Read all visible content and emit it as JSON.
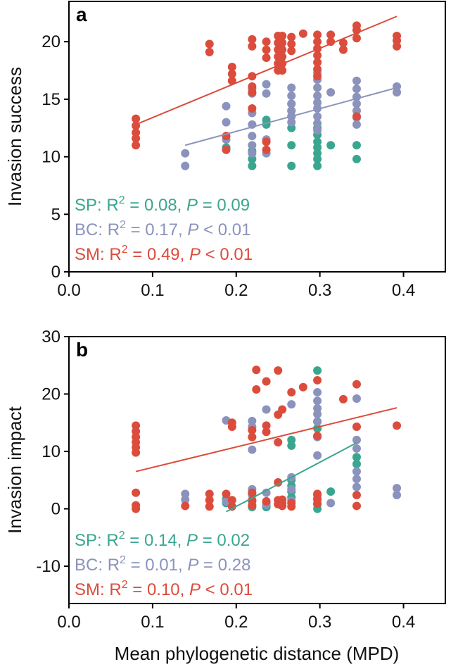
{
  "colors": {
    "SP": "#3aa68f",
    "BC": "#8b93bd",
    "SM": "#db4c3c"
  },
  "xlabel": "Mean phylogenetic distance (MPD)",
  "chart_data": [
    {
      "type": "scatter",
      "panel_label": "a",
      "ylabel": "Invasion success",
      "xlim": [
        0.0,
        0.45
      ],
      "ylim": [
        0,
        23.5
      ],
      "xticks": [
        "0.0",
        "0.1",
        "0.2",
        "0.3",
        "0.4"
      ],
      "xtick_values": [
        0.0,
        0.1,
        0.2,
        0.3,
        0.4
      ],
      "yticks": [
        "0",
        "5",
        "10",
        "15",
        "20"
      ],
      "ytick_values": [
        0,
        5,
        10,
        15,
        20
      ],
      "series": [
        {
          "name": "SP",
          "color_key": "SP",
          "points": [
            [
              0.188,
              10.8
            ],
            [
              0.219,
              9.2
            ],
            [
              0.219,
              9.8
            ],
            [
              0.219,
              10.5
            ],
            [
              0.236,
              12.8
            ],
            [
              0.236,
              13.2
            ],
            [
              0.266,
              9.2
            ],
            [
              0.266,
              11.0
            ],
            [
              0.266,
              12.5
            ],
            [
              0.266,
              13.5
            ],
            [
              0.266,
              14.0
            ],
            [
              0.266,
              14.6
            ],
            [
              0.297,
              9.2
            ],
            [
              0.297,
              9.8
            ],
            [
              0.297,
              10.3
            ],
            [
              0.297,
              10.8
            ],
            [
              0.297,
              11.3
            ],
            [
              0.297,
              11.9
            ],
            [
              0.297,
              12.5
            ],
            [
              0.313,
              11.0
            ],
            [
              0.344,
              9.8
            ],
            [
              0.344,
              11.0
            ]
          ],
          "fit": [],
          "stats_label": "SP: ",
          "r2_text": "R",
          "r2_sup": "2",
          "r2_value": " = 0.08, ",
          "p_italic": "P",
          "p_text": " = 0.09"
        },
        {
          "name": "BC",
          "color_key": "BC",
          "points": [
            [
              0.139,
              9.2
            ],
            [
              0.139,
              10.3
            ],
            [
              0.188,
              13.0
            ],
            [
              0.188,
              14.4
            ],
            [
              0.188,
              11.5
            ],
            [
              0.219,
              10.3
            ],
            [
              0.219,
              11.0
            ],
            [
              0.219,
              11.8
            ],
            [
              0.219,
              12.8
            ],
            [
              0.219,
              13.8
            ],
            [
              0.219,
              15.5
            ],
            [
              0.219,
              15.9
            ],
            [
              0.236,
              10.3
            ],
            [
              0.236,
              11.5
            ],
            [
              0.236,
              15.5
            ],
            [
              0.236,
              16.3
            ],
            [
              0.266,
              13.0
            ],
            [
              0.266,
              13.5
            ],
            [
              0.266,
              14.0
            ],
            [
              0.266,
              14.6
            ],
            [
              0.266,
              15.3
            ],
            [
              0.266,
              16.0
            ],
            [
              0.297,
              12.3
            ],
            [
              0.297,
              12.9
            ],
            [
              0.297,
              13.5
            ],
            [
              0.297,
              14.2
            ],
            [
              0.297,
              14.7
            ],
            [
              0.297,
              15.3
            ],
            [
              0.297,
              16.0
            ],
            [
              0.297,
              16.7
            ],
            [
              0.297,
              17.3
            ],
            [
              0.313,
              15.6
            ],
            [
              0.344,
              12.8
            ],
            [
              0.344,
              13.4
            ],
            [
              0.344,
              14.0
            ],
            [
              0.344,
              14.6
            ],
            [
              0.344,
              15.2
            ],
            [
              0.344,
              15.9
            ],
            [
              0.344,
              16.6
            ],
            [
              0.392,
              15.6
            ],
            [
              0.392,
              16.1
            ]
          ],
          "fit": [
            [
              0.139,
              11.0
            ],
            [
              0.392,
              16.0
            ]
          ],
          "stats_label": "BC: ",
          "r2_text": "R",
          "r2_sup": "2",
          "r2_value": " = 0.17, ",
          "p_italic": "P",
          "p_text": " < 0.01"
        },
        {
          "name": "SM",
          "color_key": "SM",
          "points": [
            [
              0.08,
              11.0
            ],
            [
              0.08,
              11.6
            ],
            [
              0.08,
              12.1
            ],
            [
              0.08,
              12.7
            ],
            [
              0.08,
              13.3
            ],
            [
              0.168,
              19.1
            ],
            [
              0.168,
              19.8
            ],
            [
              0.188,
              10.6
            ],
            [
              0.188,
              11.8
            ],
            [
              0.195,
              16.6
            ],
            [
              0.195,
              17.2
            ],
            [
              0.195,
              17.8
            ],
            [
              0.219,
              14.2
            ],
            [
              0.219,
              15.6
            ],
            [
              0.219,
              16.1
            ],
            [
              0.219,
              17.0
            ],
            [
              0.219,
              19.6
            ],
            [
              0.219,
              20.2
            ],
            [
              0.236,
              10.6
            ],
            [
              0.236,
              11.3
            ],
            [
              0.236,
              18.6
            ],
            [
              0.236,
              19.3
            ],
            [
              0.236,
              20.0
            ],
            [
              0.25,
              17.5
            ],
            [
              0.25,
              18.1
            ],
            [
              0.25,
              18.7
            ],
            [
              0.25,
              19.3
            ],
            [
              0.25,
              19.9
            ],
            [
              0.25,
              20.5
            ],
            [
              0.255,
              17.5
            ],
            [
              0.255,
              18.1
            ],
            [
              0.255,
              18.7
            ],
            [
              0.255,
              19.3
            ],
            [
              0.255,
              19.9
            ],
            [
              0.255,
              20.5
            ],
            [
              0.266,
              19.2
            ],
            [
              0.266,
              19.8
            ],
            [
              0.266,
              20.4
            ],
            [
              0.28,
              20.7
            ],
            [
              0.297,
              17.0
            ],
            [
              0.297,
              17.6
            ],
            [
              0.297,
              18.2
            ],
            [
              0.297,
              18.8
            ],
            [
              0.297,
              19.4
            ],
            [
              0.297,
              20.0
            ],
            [
              0.297,
              20.6
            ],
            [
              0.313,
              20.0
            ],
            [
              0.313,
              20.6
            ],
            [
              0.328,
              19.3
            ],
            [
              0.328,
              19.9
            ],
            [
              0.344,
              13.5
            ],
            [
              0.344,
              20.3
            ],
            [
              0.344,
              21.0
            ],
            [
              0.344,
              21.4
            ],
            [
              0.392,
              19.6
            ],
            [
              0.392,
              20.1
            ],
            [
              0.392,
              20.5
            ]
          ],
          "fit": [
            [
              0.08,
              12.8
            ],
            [
              0.392,
              22.2
            ]
          ],
          "stats_label": "SM: ",
          "r2_text": "R",
          "r2_sup": "2",
          "r2_value": " = 0.49, ",
          "p_italic": "P",
          "p_text": " < 0.01"
        }
      ]
    },
    {
      "type": "scatter",
      "panel_label": "b",
      "ylabel": "Invasion impact",
      "xlim": [
        0.0,
        0.45
      ],
      "ylim": [
        -16.5,
        30
      ],
      "xticks": [
        "0.0",
        "0.1",
        "0.2",
        "0.3",
        "0.4"
      ],
      "xtick_values": [
        0.0,
        0.1,
        0.2,
        0.3,
        0.4
      ],
      "yticks": [
        "-10",
        "0",
        "10",
        "20",
        "30"
      ],
      "ytick_values": [
        -10,
        0,
        10,
        20,
        30
      ],
      "series": [
        {
          "name": "SP",
          "color_key": "SP",
          "points": [
            [
              0.188,
              1.0
            ],
            [
              0.188,
              1.7
            ],
            [
              0.219,
              0.3
            ],
            [
              0.219,
              1.3
            ],
            [
              0.236,
              0.3
            ],
            [
              0.236,
              1.0
            ],
            [
              0.266,
              2.0
            ],
            [
              0.266,
              3.0
            ],
            [
              0.266,
              4.0
            ],
            [
              0.266,
              5.0
            ],
            [
              0.266,
              11.0
            ],
            [
              0.266,
              12.0
            ],
            [
              0.297,
              0.0
            ],
            [
              0.297,
              0.8
            ],
            [
              0.297,
              1.6
            ],
            [
              0.297,
              2.4
            ],
            [
              0.297,
              14.0
            ],
            [
              0.297,
              15.2
            ],
            [
              0.297,
              24.1
            ],
            [
              0.313,
              3.0
            ],
            [
              0.344,
              7.8
            ],
            [
              0.344,
              9.0
            ]
          ],
          "fit": [
            [
              0.188,
              -0.5
            ],
            [
              0.344,
              11.5
            ]
          ],
          "stats_label": "SP: ",
          "r2_text": "R",
          "r2_sup": "2",
          "r2_value": " = 0.14, ",
          "p_italic": "P",
          "p_text": " = 0.02"
        },
        {
          "name": "BC",
          "color_key": "BC",
          "points": [
            [
              0.139,
              1.6
            ],
            [
              0.139,
              2.6
            ],
            [
              0.188,
              1.3
            ],
            [
              0.188,
              15.4
            ],
            [
              0.219,
              1.4
            ],
            [
              0.219,
              2.4
            ],
            [
              0.219,
              3.4
            ],
            [
              0.219,
              10.3
            ],
            [
              0.219,
              14.3
            ],
            [
              0.219,
              15.3
            ],
            [
              0.236,
              0.7
            ],
            [
              0.236,
              2.8
            ],
            [
              0.236,
              17.3
            ],
            [
              0.266,
              1.4
            ],
            [
              0.266,
              3.4
            ],
            [
              0.266,
              5.5
            ],
            [
              0.266,
              18.2
            ],
            [
              0.297,
              9.3
            ],
            [
              0.297,
              12.5
            ],
            [
              0.297,
              15.2
            ],
            [
              0.297,
              16.5
            ],
            [
              0.297,
              17.5
            ],
            [
              0.297,
              18.8
            ],
            [
              0.297,
              20.3
            ],
            [
              0.313,
              1.0
            ],
            [
              0.344,
              3.8
            ],
            [
              0.344,
              5.2
            ],
            [
              0.344,
              6.5
            ],
            [
              0.344,
              10.5
            ],
            [
              0.344,
              12.0
            ],
            [
              0.344,
              19.2
            ],
            [
              0.392,
              2.4
            ],
            [
              0.392,
              3.6
            ]
          ],
          "fit": [],
          "stats_label": "BC: ",
          "r2_text": "R",
          "r2_sup": "2",
          "r2_value": " = 0.01, ",
          "p_italic": "P",
          "p_text": " = 0.28"
        },
        {
          "name": "SM",
          "color_key": "SM",
          "points": [
            [
              0.08,
              0.0
            ],
            [
              0.08,
              0.6
            ],
            [
              0.08,
              2.8
            ],
            [
              0.08,
              9.8
            ],
            [
              0.08,
              10.7
            ],
            [
              0.08,
              11.6
            ],
            [
              0.08,
              12.5
            ],
            [
              0.08,
              13.5
            ],
            [
              0.08,
              14.5
            ],
            [
              0.139,
              0.5
            ],
            [
              0.168,
              0.4
            ],
            [
              0.168,
              1.5
            ],
            [
              0.168,
              2.6
            ],
            [
              0.188,
              2.6
            ],
            [
              0.195,
              0.4
            ],
            [
              0.195,
              1.5
            ],
            [
              0.195,
              14.3
            ],
            [
              0.195,
              15.0
            ],
            [
              0.219,
              0.6
            ],
            [
              0.219,
              1.5
            ],
            [
              0.219,
              2.8
            ],
            [
              0.219,
              12.5
            ],
            [
              0.219,
              13.7
            ],
            [
              0.224,
              20.8
            ],
            [
              0.224,
              24.2
            ],
            [
              0.236,
              1.3
            ],
            [
              0.236,
              13.4
            ],
            [
              0.236,
              14.5
            ],
            [
              0.236,
              22.2
            ],
            [
              0.25,
              0.8
            ],
            [
              0.25,
              1.5
            ],
            [
              0.25,
              4.6
            ],
            [
              0.25,
              11.6
            ],
            [
              0.25,
              24.1
            ],
            [
              0.25,
              16.4
            ],
            [
              0.255,
              0.5
            ],
            [
              0.255,
              1.0
            ],
            [
              0.255,
              1.6
            ],
            [
              0.255,
              17.3
            ],
            [
              0.266,
              0.4
            ],
            [
              0.266,
              1.0
            ],
            [
              0.266,
              20.3
            ],
            [
              0.28,
              21.2
            ],
            [
              0.297,
              0.9
            ],
            [
              0.297,
              1.7
            ],
            [
              0.297,
              2.6
            ],
            [
              0.297,
              12.7
            ],
            [
              0.297,
              22.4
            ],
            [
              0.328,
              19.1
            ],
            [
              0.344,
              0.5
            ],
            [
              0.344,
              2.4
            ],
            [
              0.344,
              14.3
            ],
            [
              0.344,
              21.7
            ],
            [
              0.392,
              14.5
            ]
          ],
          "fit": [
            [
              0.08,
              6.5
            ],
            [
              0.392,
              17.6
            ]
          ],
          "stats_label": "SM: ",
          "r2_text": "R",
          "r2_sup": "2",
          "r2_value": " = 0.10, ",
          "p_italic": "P",
          "p_text": " < 0.01"
        }
      ]
    }
  ]
}
